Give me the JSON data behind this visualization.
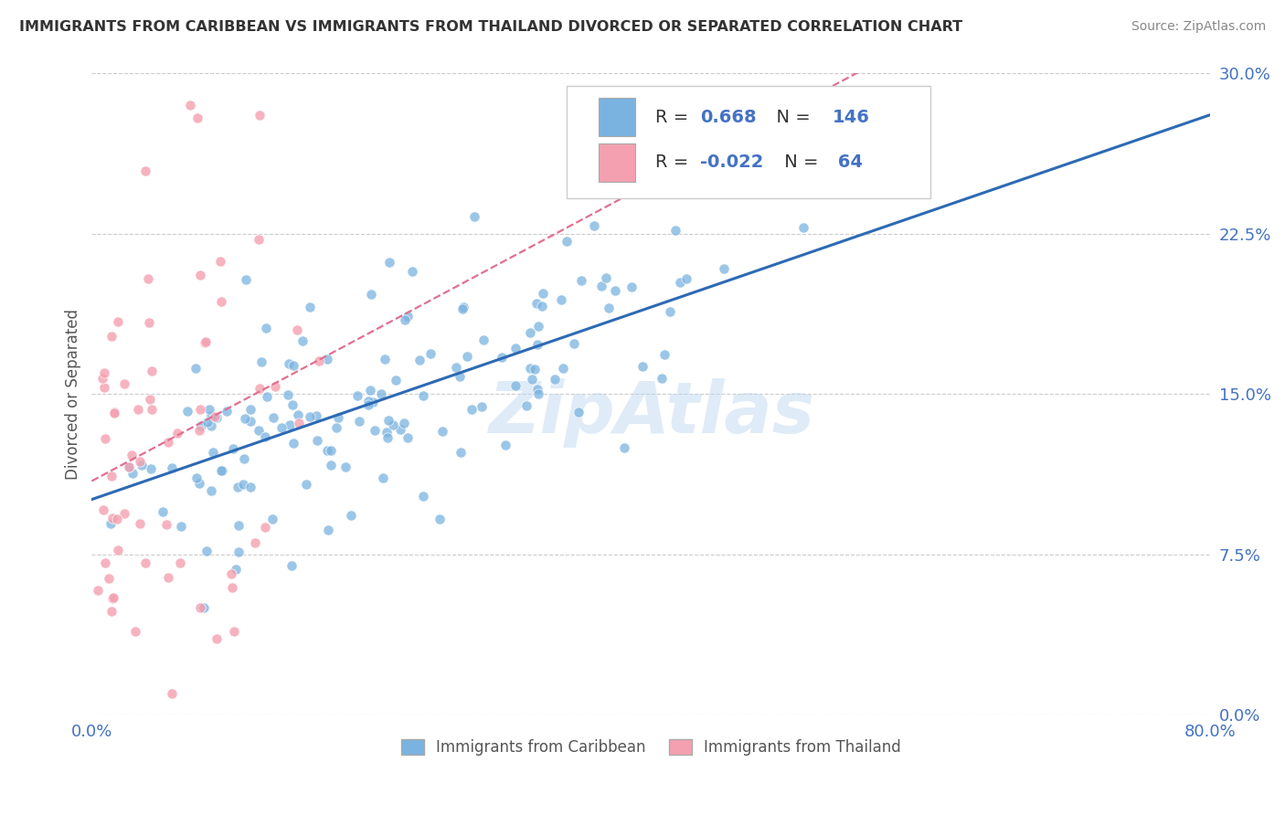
{
  "title": "IMMIGRANTS FROM CARIBBEAN VS IMMIGRANTS FROM THAILAND DIVORCED OR SEPARATED CORRELATION CHART",
  "source_text": "Source: ZipAtlas.com",
  "ylabel": "Divorced or Separated",
  "watermark": "ZipAtlas",
  "x_min": 0.0,
  "x_max": 0.8,
  "y_min": 0.0,
  "y_max": 0.3,
  "x_ticks": [
    0.0,
    0.2,
    0.4,
    0.6,
    0.8
  ],
  "y_ticks": [
    0.0,
    0.075,
    0.15,
    0.225,
    0.3
  ],
  "y_tick_labels": [
    "0.0%",
    "7.5%",
    "15.0%",
    "22.5%",
    "30.0%"
  ],
  "caribbean_color": "#7ab3e0",
  "thailand_color": "#f4a0b0",
  "caribbean_R": 0.668,
  "caribbean_N": 146,
  "thailand_R": -0.022,
  "thailand_N": 64,
  "trend_blue_color": "#2d6ab4",
  "trend_pink_color": "#e07090",
  "grid_color": "#cccccc",
  "background_color": "#ffffff",
  "legend_label_caribbean": "Immigrants from Caribbean",
  "legend_label_thailand": "Immigrants from Thailand",
  "title_color": "#333333",
  "tick_label_color": "#4472c4",
  "value_color": "#4472c4"
}
